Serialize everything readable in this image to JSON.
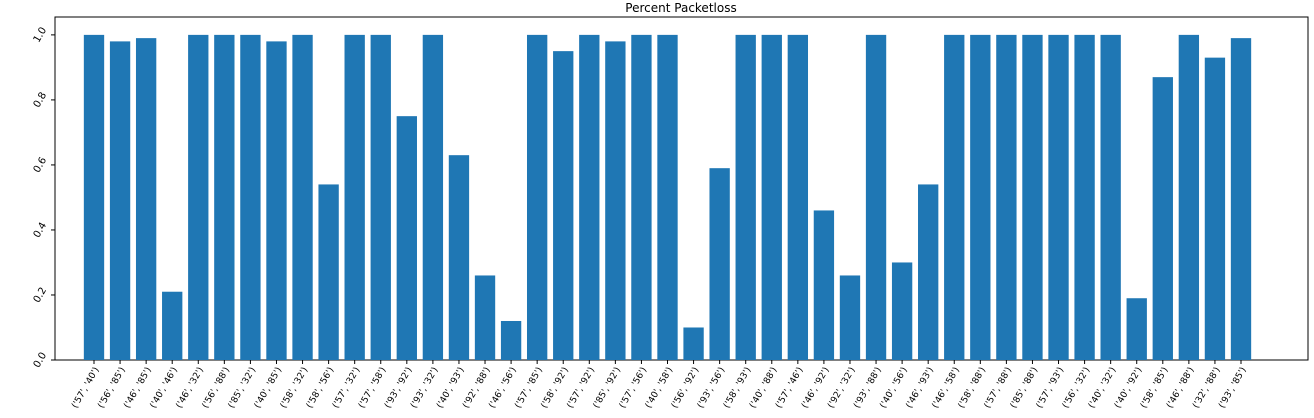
{
  "chart_data": {
    "type": "bar",
    "title": "Percent Packetloss",
    "categories": [
      "('57', '40')",
      "('56', '85')",
      "('46', '85')",
      "('40', '46')",
      "('46', '32')",
      "('56', '88')",
      "('85', '32')",
      "('40', '85')",
      "('58', '32')",
      "('58', '56')",
      "('57', '32')",
      "('57', '58')",
      "('93', '92')",
      "('93', '32')",
      "('40', '93')",
      "('92', '88')",
      "('46', '56')",
      "('57', '85')",
      "('58', '92')",
      "('57', '92')",
      "('85', '92')",
      "('57', '56')",
      "('40', '58')",
      "('56', '92')",
      "('93', '56')",
      "('58', '93')",
      "('40', '88')",
      "('57', '46')",
      "('46', '92')",
      "('92', '32')",
      "('93', '88')",
      "('40', '56')",
      "('46', '93')",
      "('46', '58')",
      "('58', '88')",
      "('57', '88')",
      "('85', '88')",
      "('57', '93')",
      "('56', '32')",
      "('40', '32')",
      "('40', '92')",
      "('58', '85')",
      "('46', '88')",
      "('32', '88')",
      "('93', '85')"
    ],
    "values": [
      1.0,
      0.98,
      0.99,
      0.21,
      1.0,
      1.0,
      1.0,
      0.98,
      1.0,
      0.54,
      1.0,
      1.0,
      0.75,
      1.0,
      0.63,
      0.26,
      0.12,
      1.0,
      0.95,
      1.0,
      0.98,
      1.0,
      1.0,
      0.1,
      0.59,
      1.0,
      1.0,
      1.0,
      0.46,
      0.26,
      1.0,
      0.3,
      0.54,
      1.0,
      1.0,
      1.0,
      1.0,
      1.0,
      1.0,
      1.0,
      0.19,
      0.87,
      1.0,
      0.93,
      0.99
    ],
    "color": "#1f77b4",
    "ylim": [
      0,
      1.055
    ],
    "yticks": [
      {
        "value": 0,
        "label": "0.0"
      },
      0.2,
      0.4,
      0.6,
      0.8,
      {
        "value": 1,
        "label": "1.0"
      }
    ]
  }
}
